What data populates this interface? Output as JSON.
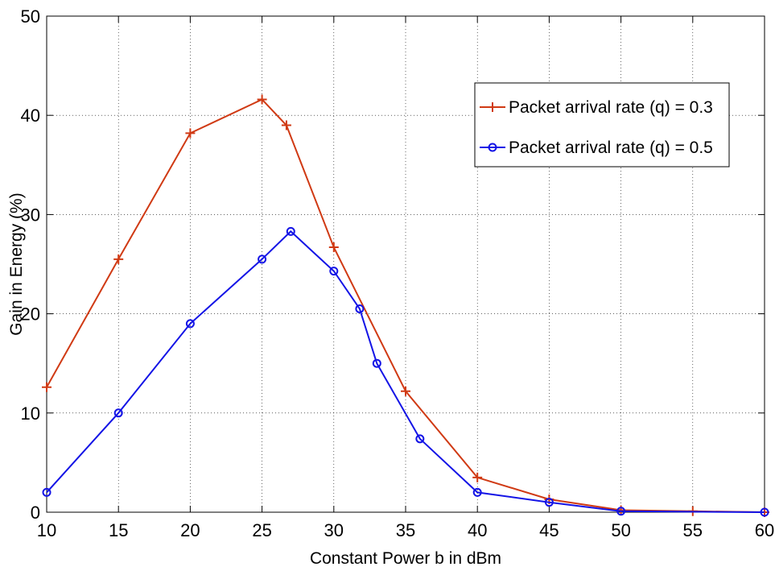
{
  "chart_data": {
    "type": "line",
    "title": "",
    "xlabel": "Constant Power b in dBm",
    "ylabel": "Gain in Energy (%)",
    "xlim": [
      10,
      60
    ],
    "ylim": [
      0,
      50
    ],
    "xticks": [
      10,
      15,
      20,
      25,
      30,
      35,
      40,
      45,
      50,
      55,
      60
    ],
    "yticks": [
      0,
      10,
      20,
      30,
      40,
      50
    ],
    "grid": true,
    "legend_position": "top-right",
    "series": [
      {
        "name": "Packet arrival rate (q) = 0.3",
        "color": "#d03a14",
        "marker": "plus",
        "x": [
          10,
          15,
          20,
          25,
          26.7,
          30,
          35,
          40,
          45,
          50,
          55,
          60
        ],
        "y": [
          12.6,
          25.5,
          38.2,
          41.6,
          39.0,
          26.7,
          12.2,
          3.5,
          1.3,
          0.2,
          0.1,
          0.0
        ]
      },
      {
        "name": "Packet arrival rate (q) = 0.5",
        "color": "#1414e6",
        "marker": "circle",
        "x": [
          10,
          15,
          20,
          25,
          27,
          30,
          31.8,
          33,
          36,
          40,
          45,
          50,
          60
        ],
        "y": [
          2.0,
          10.0,
          19.0,
          25.5,
          28.3,
          24.3,
          20.5,
          15.0,
          7.4,
          2.0,
          1.0,
          0.1,
          0.0
        ]
      }
    ]
  }
}
